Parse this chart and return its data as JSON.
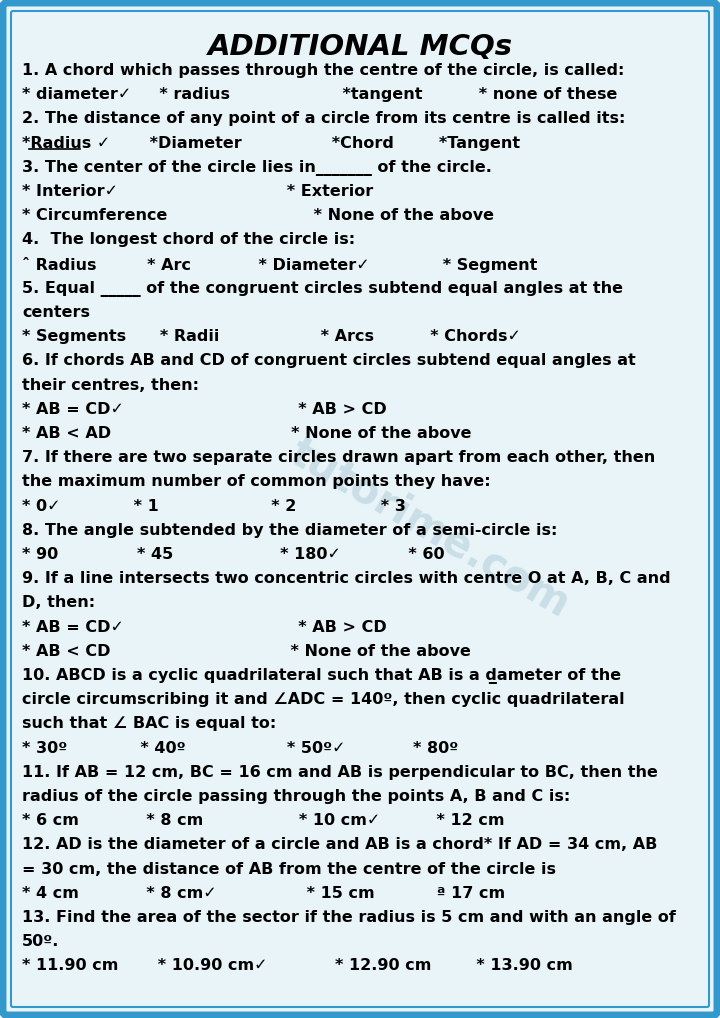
{
  "title": "ADDITIONAL MCQs",
  "bg_color": "#e8f4f8",
  "border_color": "#3399cc",
  "text_color": "#000000",
  "watermark_color": "#c8dde8",
  "lines": [
    {
      "text": "1. A chord which passes through the centre of the circle, is called:",
      "size": 11.5
    },
    {
      "text": "* diameter✓     * radius                    *tangent          * none of these",
      "size": 11.5
    },
    {
      "text": "2. The distance of any point of a circle from its centre is called its:",
      "size": 11.5
    },
    {
      "text": "*Radius ✓       *Diameter                *Chord        *Tangent",
      "size": 11.5,
      "underline_radius": true
    },
    {
      "text": "3. The center of the circle lies in_______ of the circle.",
      "size": 11.5
    },
    {
      "text": "* Interior✓                              * Exterior",
      "size": 11.5
    },
    {
      "text": "* Circumference                          * None of the above",
      "size": 11.5
    },
    {
      "text": "4.  The longest chord of the circle is:",
      "size": 11.5
    },
    {
      "text": "ˆ Radius         * Arc            * Diameter✓             * Segment",
      "size": 11.5
    },
    {
      "text": "5. Equal _____ of the congruent circles subtend equal angles at the",
      "size": 11.5
    },
    {
      "text": "centers",
      "size": 11.5
    },
    {
      "text": "* Segments      * Radii                  * Arcs          * Chords✓",
      "size": 11.5
    },
    {
      "text": "6. If chords AB and CD of congruent circles subtend equal angles at",
      "size": 11.5
    },
    {
      "text": "their centres, then:",
      "size": 11.5
    },
    {
      "text": "* AB = CD✓                               * AB > CD",
      "size": 11.5
    },
    {
      "text": "* AB < AD                                * None of the above",
      "size": 11.5
    },
    {
      "text": "7. If there are two separate circles drawn apart from each other, then",
      "size": 11.5
    },
    {
      "text": "the maximum number of common points they have:",
      "size": 11.5
    },
    {
      "text": "* 0✓             * 1                    * 2               * 3",
      "size": 11.5
    },
    {
      "text": "8. The angle subtended by the diameter of a semi-circle is:",
      "size": 11.5
    },
    {
      "text": "* 90              * 45                   * 180✓            * 60",
      "size": 11.5
    },
    {
      "text": "9. If a line intersects two concentric circles with centre O at A, B, C and",
      "size": 11.5
    },
    {
      "text": "D, then:",
      "size": 11.5
    },
    {
      "text": "* AB = CD✓                               * AB > CD",
      "size": 11.5
    },
    {
      "text": "* AB < CD                                * None of the above",
      "size": 11.5
    },
    {
      "text": "10. ABCD is a cyclic quadrilateral such that AB is a d̲ameter of the",
      "size": 11.5
    },
    {
      "text": "circle circumscribing it and ∠ADC = 140º, then cyclic quadrilateral",
      "size": 11.5
    },
    {
      "text": "such that ∠ BAC is equal to:",
      "size": 11.5
    },
    {
      "text": "* 30º             * 40º                  * 50º✓            * 80º",
      "size": 11.5
    },
    {
      "text": "11. If AB = 12 cm, BC = 16 cm and AB is perpendicular to BC, then the",
      "size": 11.5
    },
    {
      "text": "radius of the circle passing through the points A, B and C is:",
      "size": 11.5
    },
    {
      "text": "* 6 cm            * 8 cm                 * 10 cm✓          * 12 cm",
      "size": 11.5
    },
    {
      "text": "12. AD is the diameter of a circle and AB is a chord* If AD = 34 cm, AB",
      "size": 11.5
    },
    {
      "text": "= 30 cm, the distance of AB from the centre of the circle is",
      "size": 11.5
    },
    {
      "text": "* 4 cm            * 8 cm✓                * 15 cm           ª 17 cm",
      "size": 11.5
    },
    {
      "text": "13. Find the area of the sector if the radius is 5 cm and with an angle of",
      "size": 11.5
    },
    {
      "text": "50º.",
      "size": 11.5
    },
    {
      "text": "* 11.90 cm       * 10.90 cm✓            * 12.90 cm        * 13.90 cm",
      "size": 11.5
    }
  ]
}
